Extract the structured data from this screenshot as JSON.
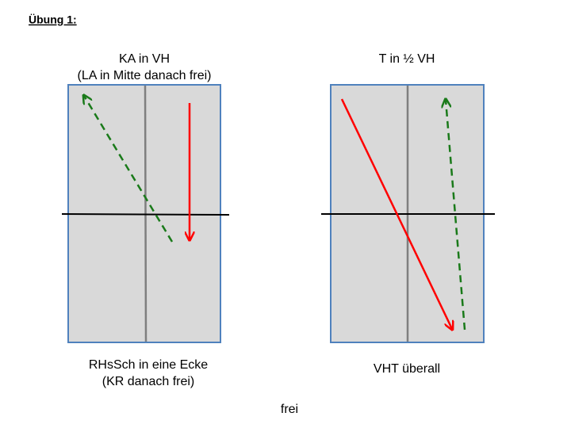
{
  "header": {
    "title": "Übung 1:"
  },
  "diagrams": [
    {
      "title": [
        "KA in VH",
        "(LA in Mitte danach frei)"
      ],
      "caption": [
        "RHsSch in eine Ecke",
        "(KR danach frei)"
      ]
    },
    {
      "title": [
        "T in ½ VH"
      ],
      "caption": [
        "VHT überall"
      ]
    }
  ],
  "footer": "frei"
}
